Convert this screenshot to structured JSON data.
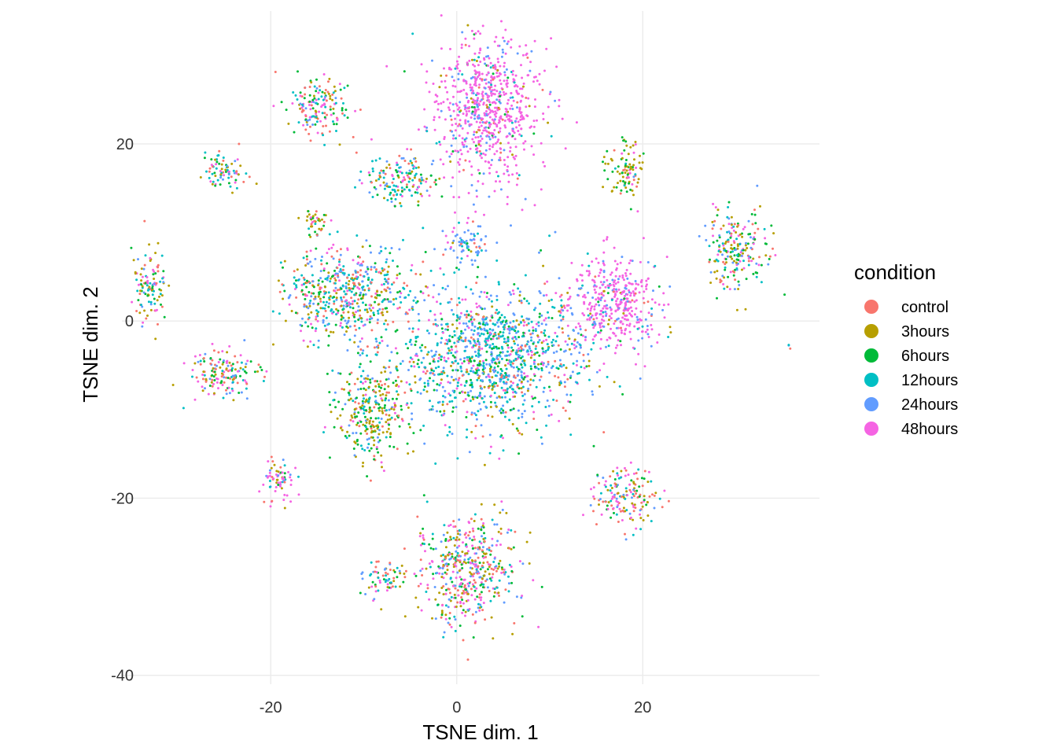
{
  "chart_data": {
    "type": "scatter",
    "title": "",
    "xlabel": "TSNE dim. 1",
    "ylabel": "TSNE dim. 2",
    "xlim": [
      -36,
      39
    ],
    "ylim": [
      -41,
      35
    ],
    "x_ticks": [
      -20,
      0,
      20
    ],
    "y_ticks": [
      -40,
      -20,
      0,
      20
    ],
    "x_tick_labels": [
      "-20",
      "0",
      "20"
    ],
    "y_tick_labels": [
      "-40",
      "-20",
      "0",
      "20"
    ],
    "grid": true,
    "legend": {
      "title": "condition",
      "position": "right"
    },
    "series": [
      {
        "name": "control",
        "color": "#F8766D"
      },
      {
        "name": "3hours",
        "color": "#B79F00"
      },
      {
        "name": "6hours",
        "color": "#00BA38"
      },
      {
        "name": "12hours",
        "color": "#00BFC4"
      },
      {
        "name": "24hours",
        "color": "#619CFF"
      },
      {
        "name": "48hours",
        "color": "#F564E3"
      }
    ],
    "clusters": [
      {
        "center": [
          3,
          24
        ],
        "spread": [
          5.5,
          7.5
        ],
        "mix": [
          0.04,
          0.03,
          0.03,
          0.04,
          0.14,
          0.72
        ]
      },
      {
        "center": [
          4,
          -4
        ],
        "spread": [
          9,
          7.5
        ],
        "mix": [
          0.08,
          0.08,
          0.12,
          0.32,
          0.28,
          0.12
        ]
      },
      {
        "center": [
          17,
          2
        ],
        "spread": [
          4.5,
          5
        ],
        "mix": [
          0.03,
          0.02,
          0.02,
          0.05,
          0.18,
          0.7
        ]
      },
      {
        "center": [
          -9,
          -10
        ],
        "spread": [
          3.5,
          5
        ],
        "mix": [
          0.12,
          0.35,
          0.25,
          0.12,
          0.08,
          0.08
        ]
      },
      {
        "center": [
          -12,
          3
        ],
        "spread": [
          6,
          5
        ],
        "mix": [
          0.14,
          0.14,
          0.14,
          0.24,
          0.2,
          0.14
        ]
      },
      {
        "center": [
          1,
          -28
        ],
        "spread": [
          5,
          5.5
        ],
        "mix": [
          0.2,
          0.16,
          0.16,
          0.12,
          0.12,
          0.24
        ]
      },
      {
        "center": [
          18,
          -20
        ],
        "spread": [
          3,
          3
        ],
        "mix": [
          0.26,
          0.16,
          0.16,
          0.14,
          0.12,
          0.16
        ]
      },
      {
        "center": [
          -8,
          -29
        ],
        "spread": [
          2,
          1.8
        ],
        "mix": [
          0.18,
          0.16,
          0.16,
          0.16,
          0.16,
          0.18
        ]
      },
      {
        "center": [
          30,
          8
        ],
        "spread": [
          3,
          4
        ],
        "mix": [
          0.16,
          0.2,
          0.2,
          0.14,
          0.14,
          0.16
        ]
      },
      {
        "center": [
          -33,
          4
        ],
        "spread": [
          1.8,
          3.5
        ],
        "mix": [
          0.16,
          0.18,
          0.18,
          0.16,
          0.14,
          0.18
        ]
      },
      {
        "center": [
          -25,
          -6
        ],
        "spread": [
          3.5,
          2.5
        ],
        "mix": [
          0.18,
          0.16,
          0.16,
          0.16,
          0.14,
          0.2
        ]
      },
      {
        "center": [
          -25,
          17
        ],
        "spread": [
          2.2,
          2
        ],
        "mix": [
          0.14,
          0.14,
          0.16,
          0.26,
          0.14,
          0.16
        ]
      },
      {
        "center": [
          18,
          17
        ],
        "spread": [
          1.8,
          3
        ],
        "mix": [
          0.08,
          0.5,
          0.24,
          0.08,
          0.04,
          0.06
        ]
      },
      {
        "center": [
          -15,
          24
        ],
        "spread": [
          3,
          3
        ],
        "mix": [
          0.16,
          0.16,
          0.16,
          0.16,
          0.16,
          0.2
        ]
      },
      {
        "center": [
          1,
          8.5
        ],
        "spread": [
          2.2,
          1.8
        ],
        "mix": [
          0.06,
          0.04,
          0.04,
          0.16,
          0.6,
          0.1
        ]
      },
      {
        "center": [
          -19,
          -18
        ],
        "spread": [
          1.6,
          2.5
        ],
        "mix": [
          0.12,
          0.06,
          0.06,
          0.1,
          0.1,
          0.56
        ]
      },
      {
        "center": [
          -15,
          11
        ],
        "spread": [
          1.5,
          1.5
        ],
        "mix": [
          0.12,
          0.34,
          0.3,
          0.1,
          0.06,
          0.08
        ]
      },
      {
        "center": [
          -6,
          16
        ],
        "spread": [
          3.5,
          2.5
        ],
        "mix": [
          0.14,
          0.12,
          0.12,
          0.3,
          0.16,
          0.16
        ]
      },
      {
        "center": [
          35.5,
          -3
        ],
        "spread": [
          0.3,
          0.5
        ],
        "mix": [
          0.1,
          0.1,
          0.2,
          0.4,
          0.2,
          0.0
        ]
      }
    ]
  }
}
